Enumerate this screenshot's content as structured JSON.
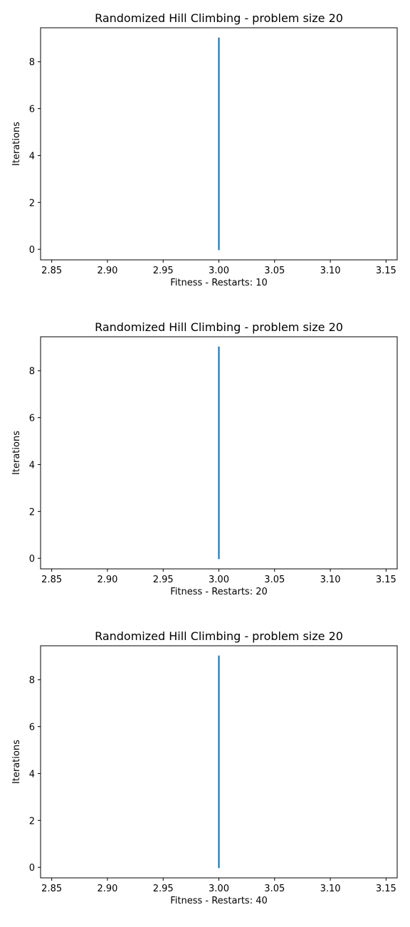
{
  "chart_data": [
    {
      "type": "line",
      "title": "Randomized Hill Climbing - problem size 20",
      "xlabel": "Fitness - Restarts: 10",
      "ylabel": "Iterations",
      "xlim": [
        2.84,
        3.16
      ],
      "ylim": [
        -0.45,
        9.45
      ],
      "xticks": [
        2.85,
        2.9,
        2.95,
        3.0,
        3.05,
        3.1,
        3.15
      ],
      "xtick_labels": [
        "2.85",
        "2.90",
        "2.95",
        "3.00",
        "3.05",
        "3.10",
        "3.15"
      ],
      "yticks": [
        0,
        2,
        4,
        6,
        8
      ],
      "ytick_labels": [
        "0",
        "2",
        "4",
        "6",
        "8"
      ],
      "grid": false,
      "series": [
        {
          "x": [
            3.0,
            3.0,
            3.0,
            3.0,
            3.0,
            3.0,
            3.0,
            3.0,
            3.0,
            3.0
          ],
          "y": [
            0,
            1,
            2,
            3,
            4,
            5,
            6,
            7,
            8,
            9
          ],
          "color": "#1f77b4"
        }
      ]
    },
    {
      "type": "line",
      "title": "Randomized Hill Climbing - problem size 20",
      "xlabel": "Fitness - Restarts: 20",
      "ylabel": "Iterations",
      "xlim": [
        2.84,
        3.16
      ],
      "ylim": [
        -0.45,
        9.45
      ],
      "xticks": [
        2.85,
        2.9,
        2.95,
        3.0,
        3.05,
        3.1,
        3.15
      ],
      "xtick_labels": [
        "2.85",
        "2.90",
        "2.95",
        "3.00",
        "3.05",
        "3.10",
        "3.15"
      ],
      "yticks": [
        0,
        2,
        4,
        6,
        8
      ],
      "ytick_labels": [
        "0",
        "2",
        "4",
        "6",
        "8"
      ],
      "grid": false,
      "series": [
        {
          "x": [
            3.0,
            3.0,
            3.0,
            3.0,
            3.0,
            3.0,
            3.0,
            3.0,
            3.0,
            3.0
          ],
          "y": [
            0,
            1,
            2,
            3,
            4,
            5,
            6,
            7,
            8,
            9
          ],
          "color": "#1f77b4"
        }
      ]
    },
    {
      "type": "line",
      "title": "Randomized Hill Climbing - problem size 20",
      "xlabel": "Fitness - Restarts: 40",
      "ylabel": "Iterations",
      "xlim": [
        2.84,
        3.16
      ],
      "ylim": [
        -0.45,
        9.45
      ],
      "xticks": [
        2.85,
        2.9,
        2.95,
        3.0,
        3.05,
        3.1,
        3.15
      ],
      "xtick_labels": [
        "2.85",
        "2.90",
        "2.95",
        "3.00",
        "3.05",
        "3.10",
        "3.15"
      ],
      "yticks": [
        0,
        2,
        4,
        6,
        8
      ],
      "ytick_labels": [
        "0",
        "2",
        "4",
        "6",
        "8"
      ],
      "grid": false,
      "series": [
        {
          "x": [
            3.0,
            3.0,
            3.0,
            3.0,
            3.0,
            3.0,
            3.0,
            3.0,
            3.0,
            3.0
          ],
          "y": [
            0,
            1,
            2,
            3,
            4,
            5,
            6,
            7,
            8,
            9
          ],
          "color": "#1f77b4"
        }
      ]
    }
  ]
}
